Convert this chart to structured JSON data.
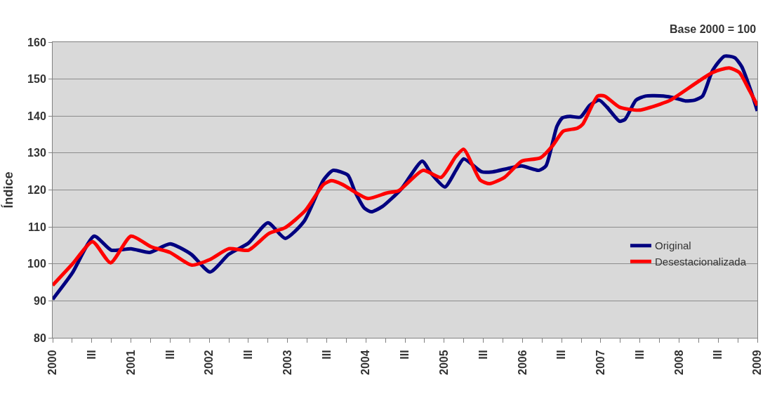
{
  "chart_data": {
    "type": "line",
    "ylabel": "Índice",
    "annotations": [
      "Base 2000 = 100"
    ],
    "xlim": [
      2000,
      2009
    ],
    "xticks": [
      {
        "value": 2000,
        "label": "2000"
      },
      {
        "value": 2000.25,
        "label": null
      },
      {
        "value": 2000.5,
        "label": "III"
      },
      {
        "value": 2000.75,
        "label": null
      },
      {
        "value": 2001,
        "label": "2001"
      },
      {
        "value": 2001.25,
        "label": null
      },
      {
        "value": 2001.5,
        "label": "III"
      },
      {
        "value": 2001.75,
        "label": null
      },
      {
        "value": 2002,
        "label": "2002"
      },
      {
        "value": 2002.25,
        "label": null
      },
      {
        "value": 2002.5,
        "label": "III"
      },
      {
        "value": 2002.75,
        "label": null
      },
      {
        "value": 2003,
        "label": "2003"
      },
      {
        "value": 2003.25,
        "label": null
      },
      {
        "value": 2003.5,
        "label": "III"
      },
      {
        "value": 2003.75,
        "label": null
      },
      {
        "value": 2004,
        "label": "2004"
      },
      {
        "value": 2004.25,
        "label": null
      },
      {
        "value": 2004.5,
        "label": "III"
      },
      {
        "value": 2004.75,
        "label": null
      },
      {
        "value": 2005,
        "label": "2005"
      },
      {
        "value": 2005.25,
        "label": null
      },
      {
        "value": 2005.5,
        "label": "III"
      },
      {
        "value": 2005.75,
        "label": null
      },
      {
        "value": 2006,
        "label": "2006"
      },
      {
        "value": 2006.25,
        "label": null
      },
      {
        "value": 2006.5,
        "label": "III"
      },
      {
        "value": 2006.75,
        "label": null
      },
      {
        "value": 2007,
        "label": "2007"
      },
      {
        "value": 2007.25,
        "label": null
      },
      {
        "value": 2007.5,
        "label": "III"
      },
      {
        "value": 2007.75,
        "label": null
      },
      {
        "value": 2008,
        "label": "2008"
      },
      {
        "value": 2008.25,
        "label": null
      },
      {
        "value": 2008.5,
        "label": "III"
      },
      {
        "value": 2008.75,
        "label": null
      },
      {
        "value": 2009,
        "label": "2009"
      }
    ],
    "ylim": [
      80,
      160
    ],
    "yticks": [
      80,
      90,
      100,
      110,
      120,
      130,
      140,
      150,
      160
    ],
    "grid": "y",
    "legend": "bottom right",
    "marker": "none",
    "line_style": "solid",
    "series": [
      {
        "name": "Original",
        "color": "#000080",
        "x": [
          2000.0,
          2000.25,
          2000.53,
          2000.75,
          2001.0,
          2001.24,
          2001.5,
          2001.77,
          2002.01,
          2002.25,
          2002.5,
          2002.75,
          2002.97,
          2003.21,
          2003.46,
          2003.58,
          2003.77,
          2003.86,
          2003.98,
          2004.07,
          2004.21,
          2004.45,
          2004.72,
          2004.83,
          2005.01,
          2005.15,
          2005.25,
          2005.48,
          2005.62,
          2005.83,
          2005.99,
          2006.21,
          2006.3,
          2006.44,
          2006.51,
          2006.61,
          2006.74,
          2006.86,
          2006.98,
          2007.08,
          2007.24,
          2007.31,
          2007.45,
          2007.57,
          2007.8,
          2007.96,
          2008.08,
          2008.2,
          2008.3,
          2008.43,
          2008.58,
          2008.71,
          2008.8,
          2008.91,
          2009.0
        ],
        "values": [
          90.4,
          97.5,
          107.5,
          103.7,
          104.1,
          103.1,
          105.4,
          102.6,
          97.8,
          102.6,
          105.6,
          111.1,
          106.9,
          111.5,
          122.7,
          125.3,
          124.0,
          119.6,
          115.1,
          114.1,
          115.5,
          120.2,
          127.8,
          124.6,
          120.8,
          125.3,
          128.4,
          124.9,
          124.9,
          125.9,
          126.5,
          125.3,
          126.5,
          137.2,
          139.5,
          139.9,
          139.7,
          142.9,
          144.3,
          142.4,
          138.6,
          139.1,
          144.3,
          145.4,
          145.4,
          144.8,
          144.1,
          144.3,
          145.4,
          152.4,
          156.2,
          155.8,
          153.4,
          147.3,
          141.4
        ]
      },
      {
        "name": "Desestacionalizada",
        "color": "#ff0000",
        "x": [
          2000.0,
          2000.25,
          2000.51,
          2000.74,
          2001.0,
          2001.26,
          2001.5,
          2001.77,
          2002.01,
          2002.25,
          2002.5,
          2002.76,
          2002.97,
          2003.23,
          2003.46,
          2003.56,
          2003.7,
          2004.02,
          2004.27,
          2004.42,
          2004.73,
          2004.96,
          2005.15,
          2005.25,
          2005.46,
          2005.58,
          2005.77,
          2005.99,
          2006.23,
          2006.39,
          2006.52,
          2006.7,
          2006.77,
          2006.96,
          2007.05,
          2007.24,
          2007.49,
          2007.77,
          2007.89,
          2008.43,
          2008.64,
          2008.77,
          2008.88,
          2009.0
        ],
        "values": [
          94.2,
          99.9,
          106.0,
          100.3,
          107.5,
          104.6,
          103.1,
          99.7,
          101.2,
          104.1,
          103.7,
          108.2,
          109.8,
          114.5,
          121.5,
          122.5,
          121.5,
          117.7,
          119.2,
          119.8,
          125.3,
          123.4,
          129.1,
          131.0,
          122.7,
          121.7,
          123.4,
          127.8,
          128.7,
          132.1,
          135.9,
          136.7,
          137.8,
          145.4,
          145.4,
          142.4,
          141.6,
          143.3,
          144.3,
          151.8,
          153.0,
          151.8,
          147.7,
          142.9
        ]
      }
    ]
  }
}
